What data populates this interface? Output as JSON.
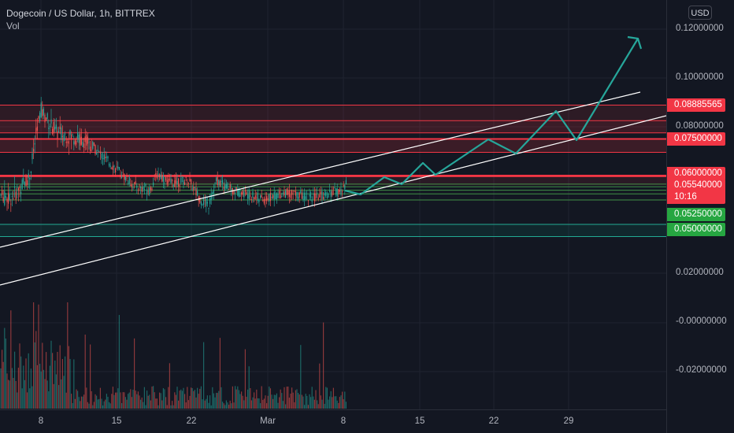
{
  "header": {
    "symbol_title": "Dogecoin / US Dollar, 1h, BITTREX",
    "volume_label": "Vol",
    "currency_button": "USD"
  },
  "price_axis": {
    "ticks": [
      {
        "label": "0.12000000",
        "value": 0.12
      },
      {
        "label": "0.10000000",
        "value": 0.1
      },
      {
        "label": "0.08000000",
        "value": 0.08
      },
      {
        "label": "0.02000000",
        "value": 0.02
      },
      {
        "label": "-0.00000000",
        "value": 0.0
      },
      {
        "label": "-0.02000000",
        "value": -0.02
      }
    ]
  },
  "price_tags": [
    {
      "label": "0.08885565",
      "color": "red",
      "value": 0.08885565
    },
    {
      "label": "0.07500000",
      "color": "red",
      "value": 0.075
    },
    {
      "label": "0.06000000",
      "color": "red",
      "value": 0.06
    },
    {
      "label": "0.05540000",
      "countdown": "10:16",
      "color": "red",
      "value": 0.0554
    },
    {
      "label": "0.05250000",
      "color": "green",
      "value": 0.0525
    },
    {
      "label": "0.05000000",
      "color": "green",
      "value": 0.05
    }
  ],
  "time_axis": {
    "ticks": [
      "8",
      "8",
      "15",
      "22",
      "Mar",
      "8",
      "15",
      "22",
      "29"
    ]
  },
  "colors": {
    "background": "#131722",
    "up_candle": "#26a69a",
    "down_candle": "#ef5350",
    "resistance": "#f23645",
    "support": "#089981",
    "trendline": "#ffffff",
    "projection": "#26a69a"
  }
}
